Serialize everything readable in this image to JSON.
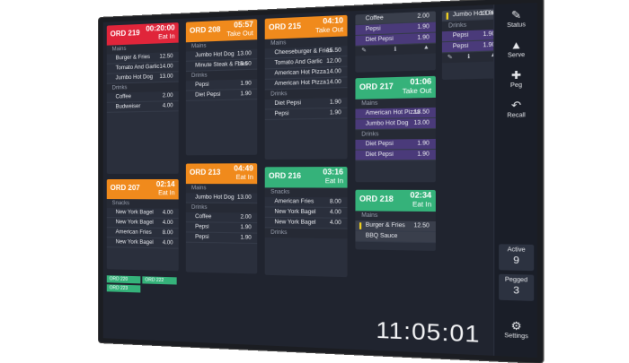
{
  "sidebar": {
    "status_label": "Status",
    "serve_label": "Serve",
    "peg_label": "Peg",
    "recall_label": "Recall",
    "settings_label": "Settings",
    "active_label": "Active",
    "active_count": "9",
    "pegged_label": "Pegged",
    "pegged_count": "3"
  },
  "clock": "11:05:01",
  "sections": {
    "mains": "Mains",
    "drinks": "Drinks",
    "snacks": "Snacks"
  },
  "tickets": {
    "o219": {
      "id": "ORD 219",
      "time": "00:20:00",
      "type": "Eat In"
    },
    "o208": {
      "id": "ORD 208",
      "time": "05:57",
      "type": "Take Out"
    },
    "o215": {
      "id": "ORD 215",
      "time": "04:10",
      "type": "Take Out"
    },
    "o207": {
      "id": "ORD 207",
      "time": "02:14",
      "type": "Eat In"
    },
    "o213": {
      "id": "ORD 213",
      "time": "04:49",
      "type": "Eat In"
    },
    "o216": {
      "id": "ORD 216",
      "time": "03:16",
      "type": "Eat In"
    },
    "o217": {
      "id": "ORD 217",
      "time": "01:06",
      "type": "Take Out"
    },
    "o218": {
      "id": "ORD 218",
      "time": "02:34",
      "type": "Eat In"
    }
  },
  "items": {
    "burger_fries": "Burger & Fries",
    "tomato_garlic": "Tomato And Garlic",
    "jumbo_hot_dog": "Jumbo Hot Dog",
    "coffee": "Coffee",
    "budweiser": "Budweiser",
    "minute_steak": "Minute Steak & Fries",
    "pepsi": "Pepsi",
    "diet_pepsi": "Diet Pepsi",
    "cheeseburger": "Cheeseburger & Fries",
    "american_pizza": "American Hot Pizza",
    "new_york_bagel": "New York Bagel",
    "american_fries": "American Fries",
    "bbq_sauce": "BBQ Sauce"
  },
  "prices": {
    "p1250": "12.50",
    "p1550": "15.50",
    "p1300": "13.00",
    "p1400": "14.00",
    "p1200": "12.00",
    "p200": "2.00",
    "p190": "1.90",
    "p400": "4.00",
    "p800": "8.00",
    "p1350": "13.50"
  },
  "mini": {
    "m1": "ORD 220",
    "m2": "ORD 222",
    "m3": "ORD 223"
  },
  "foot": {
    "left": "✎",
    "mid": "ℹ",
    "right": "▲"
  }
}
